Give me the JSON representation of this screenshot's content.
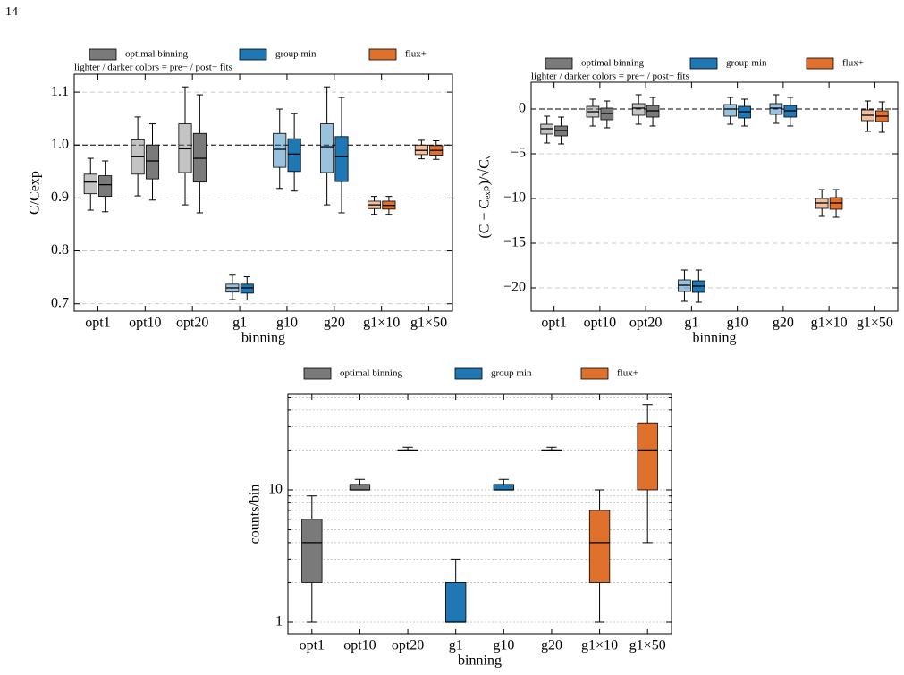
{
  "page_number": "14",
  "chart_data": [
    {
      "type": "box",
      "xlabel": "binning",
      "ylabel": "C/Cexp",
      "note": "lighter / darker colors = pre− / post− fits",
      "categories": [
        "opt1",
        "opt10",
        "opt20",
        "g1",
        "g10",
        "g20",
        "g1×10",
        "g1×50"
      ],
      "legend": [
        {
          "name": "optimal binning",
          "color": "#7a7a7a"
        },
        {
          "name": "group min",
          "color": "#1f77b4"
        },
        {
          "name": "flux+",
          "color": "#e0712c"
        }
      ],
      "colors": [
        "#7a7a7a",
        "#7a7a7a",
        "#7a7a7a",
        "#1f77b4",
        "#1f77b4",
        "#1f77b4",
        "#e0712c",
        "#e0712c"
      ],
      "boxes": [
        {
          "pre": {
            "lo": 0.877,
            "q1": 0.908,
            "med": 0.93,
            "q3": 0.945,
            "hi": 0.975
          },
          "post": {
            "lo": 0.874,
            "q1": 0.903,
            "med": 0.925,
            "q3": 0.942,
            "hi": 0.97
          }
        },
        {
          "pre": {
            "lo": 0.904,
            "q1": 0.945,
            "med": 0.978,
            "q3": 1.01,
            "hi": 1.053
          },
          "post": {
            "lo": 0.896,
            "q1": 0.936,
            "med": 0.97,
            "q3": 1.0,
            "hi": 1.04
          }
        },
        {
          "pre": {
            "lo": 0.887,
            "q1": 0.948,
            "med": 0.993,
            "q3": 1.04,
            "hi": 1.11
          },
          "post": {
            "lo": 0.872,
            "q1": 0.93,
            "med": 0.975,
            "q3": 1.022,
            "hi": 1.095
          }
        },
        {
          "pre": {
            "lo": 0.708,
            "q1": 0.722,
            "med": 0.73,
            "q3": 0.737,
            "hi": 0.754
          },
          "post": {
            "lo": 0.707,
            "q1": 0.72,
            "med": 0.73,
            "q3": 0.737,
            "hi": 0.751
          }
        },
        {
          "pre": {
            "lo": 0.918,
            "q1": 0.958,
            "med": 0.992,
            "q3": 1.022,
            "hi": 1.068
          },
          "post": {
            "lo": 0.913,
            "q1": 0.95,
            "med": 0.983,
            "q3": 1.012,
            "hi": 1.06
          }
        },
        {
          "pre": {
            "lo": 0.887,
            "q1": 0.948,
            "med": 0.997,
            "q3": 1.04,
            "hi": 1.11
          },
          "post": {
            "lo": 0.872,
            "q1": 0.931,
            "med": 0.978,
            "q3": 1.016,
            "hi": 1.09
          }
        },
        {
          "pre": {
            "lo": 0.869,
            "q1": 0.88,
            "med": 0.887,
            "q3": 0.894,
            "hi": 0.903
          },
          "post": {
            "lo": 0.869,
            "q1": 0.879,
            "med": 0.886,
            "q3": 0.894,
            "hi": 0.903
          }
        },
        {
          "pre": {
            "lo": 0.974,
            "q1": 0.982,
            "med": 0.99,
            "q3": 1.0,
            "hi": 1.009
          },
          "post": {
            "lo": 0.973,
            "q1": 0.981,
            "med": 0.99,
            "q3": 0.999,
            "hi": 1.008
          }
        }
      ],
      "ylim": [
        0.686,
        1.134
      ],
      "yticks": [
        0.7,
        0.8,
        0.9,
        {
          "value": 1,
          "label": "1.0"
        },
        1.1
      ],
      "hline": 1,
      "grid": true
    },
    {
      "type": "box",
      "xlabel": "binning",
      "ylabel": "(C − Cₑₓₚ)/√Cᵥ",
      "note": "lighter / darker colors = pre− / post− fits",
      "categories": [
        "opt1",
        "opt10",
        "opt20",
        "g1",
        "g10",
        "g20",
        "g1×10",
        "g1×50"
      ],
      "legend": [
        {
          "name": "optimal binning",
          "color": "#7a7a7a"
        },
        {
          "name": "group min",
          "color": "#1f77b4"
        },
        {
          "name": "flux+",
          "color": "#e0712c"
        }
      ],
      "colors": [
        "#7a7a7a",
        "#7a7a7a",
        "#7a7a7a",
        "#1f77b4",
        "#1f77b4",
        "#1f77b4",
        "#e0712c",
        "#e0712c"
      ],
      "boxes": [
        {
          "pre": {
            "lo": -3.8,
            "q1": -2.8,
            "med": -2.2,
            "q3": -1.7,
            "hi": -0.8
          },
          "post": {
            "lo": -3.9,
            "q1": -3.0,
            "med": -2.4,
            "q3": -1.9,
            "hi": -0.9
          }
        },
        {
          "pre": {
            "lo": -1.9,
            "q1": -0.9,
            "med": -0.3,
            "q3": 0.3,
            "hi": 1.1
          },
          "post": {
            "lo": -2.1,
            "q1": -1.2,
            "med": -0.5,
            "q3": 0.1,
            "hi": 0.9
          }
        },
        {
          "pre": {
            "lo": -1.7,
            "q1": -0.7,
            "med": 0.1,
            "q3": 0.6,
            "hi": 1.6
          },
          "post": {
            "lo": -1.9,
            "q1": -0.9,
            "med": -0.2,
            "q3": 0.4,
            "hi": 1.3
          }
        },
        {
          "pre": {
            "lo": -21.5,
            "q1": -20.4,
            "med": -19.7,
            "q3": -19.1,
            "hi": -18
          },
          "post": {
            "lo": -21.6,
            "q1": -20.5,
            "med": -19.8,
            "q3": -19.2,
            "hi": -18
          }
        },
        {
          "pre": {
            "lo": -1.7,
            "q1": -0.8,
            "med": 0.0,
            "q3": 0.5,
            "hi": 1.3
          },
          "post": {
            "lo": -1.9,
            "q1": -1.0,
            "med": -0.3,
            "q3": 0.3,
            "hi": 1.1
          }
        },
        {
          "pre": {
            "lo": -1.6,
            "q1": -0.6,
            "med": 0.1,
            "q3": 0.6,
            "hi": 1.6
          },
          "post": {
            "lo": -1.9,
            "q1": -0.9,
            "med": -0.2,
            "q3": 0.4,
            "hi": 1.3
          }
        },
        {
          "pre": {
            "lo": -12,
            "q1": -11.1,
            "med": -10.5,
            "q3": -10,
            "hi": -9
          },
          "post": {
            "lo": -12.1,
            "q1": -11.2,
            "med": -10.5,
            "q3": -9.9,
            "hi": -9
          }
        },
        {
          "pre": {
            "lo": -2.5,
            "q1": -1.3,
            "med": -0.7,
            "q3": -0.1,
            "hi": 0.9
          },
          "post": {
            "lo": -2.6,
            "q1": -1.4,
            "med": -0.8,
            "q3": -0.2,
            "hi": 0.8
          }
        }
      ],
      "ylim": [
        -22.6,
        3
      ],
      "yticks": [
        {
          "value": -20,
          "label": "−20"
        },
        {
          "value": -15,
          "label": "−15"
        },
        {
          "value": -10,
          "label": "−10"
        },
        {
          "value": -5,
          "label": "−5"
        },
        0
      ],
      "hline": 0,
      "grid": true
    },
    {
      "type": "box",
      "xlabel": "binning",
      "ylabel": "counts/bin",
      "categories": [
        "opt1",
        "opt10",
        "opt20",
        "g1",
        "g10",
        "g20",
        "g1×10",
        "g1×50"
      ],
      "legend": [
        {
          "name": "optimal binning",
          "color": "#7a7a7a"
        },
        {
          "name": "group min",
          "color": "#1f77b4"
        },
        {
          "name": "flux+",
          "color": "#e0712c"
        }
      ],
      "colors": [
        "#7a7a7a",
        "#7a7a7a",
        "#7a7a7a",
        "#1f77b4",
        "#1f77b4",
        "#1f77b4",
        "#e0712c",
        "#e0712c"
      ],
      "boxes": [
        {
          "lo": 1,
          "q1": 2,
          "med": 4,
          "q3": 6,
          "hi": 9
        },
        {
          "lo": 10,
          "q1": 10,
          "med": 10,
          "q3": 11,
          "hi": 12
        },
        {
          "lo": 20,
          "q1": 20,
          "med": 20,
          "q3": 20,
          "hi": 21
        },
        {
          "lo": 1,
          "q1": 1,
          "med": 1,
          "q3": 2,
          "hi": 3
        },
        {
          "lo": 10,
          "q1": 10,
          "med": 10,
          "q3": 11,
          "hi": 12
        },
        {
          "lo": 20,
          "q1": 20,
          "med": 20,
          "q3": 20,
          "hi": 21
        },
        {
          "lo": 1,
          "q1": 2,
          "med": 4,
          "q3": 7,
          "hi": 10
        },
        {
          "lo": 4,
          "q1": 10,
          "med": 20,
          "q3": 32,
          "hi": 44
        }
      ],
      "ylim": [
        0.817,
        52.8
      ],
      "yticks": [
        1,
        10
      ],
      "minor_yticks": [
        2,
        3,
        4,
        5,
        6,
        7,
        8,
        9,
        20,
        30,
        40,
        50
      ],
      "log": true,
      "grid": true
    }
  ]
}
